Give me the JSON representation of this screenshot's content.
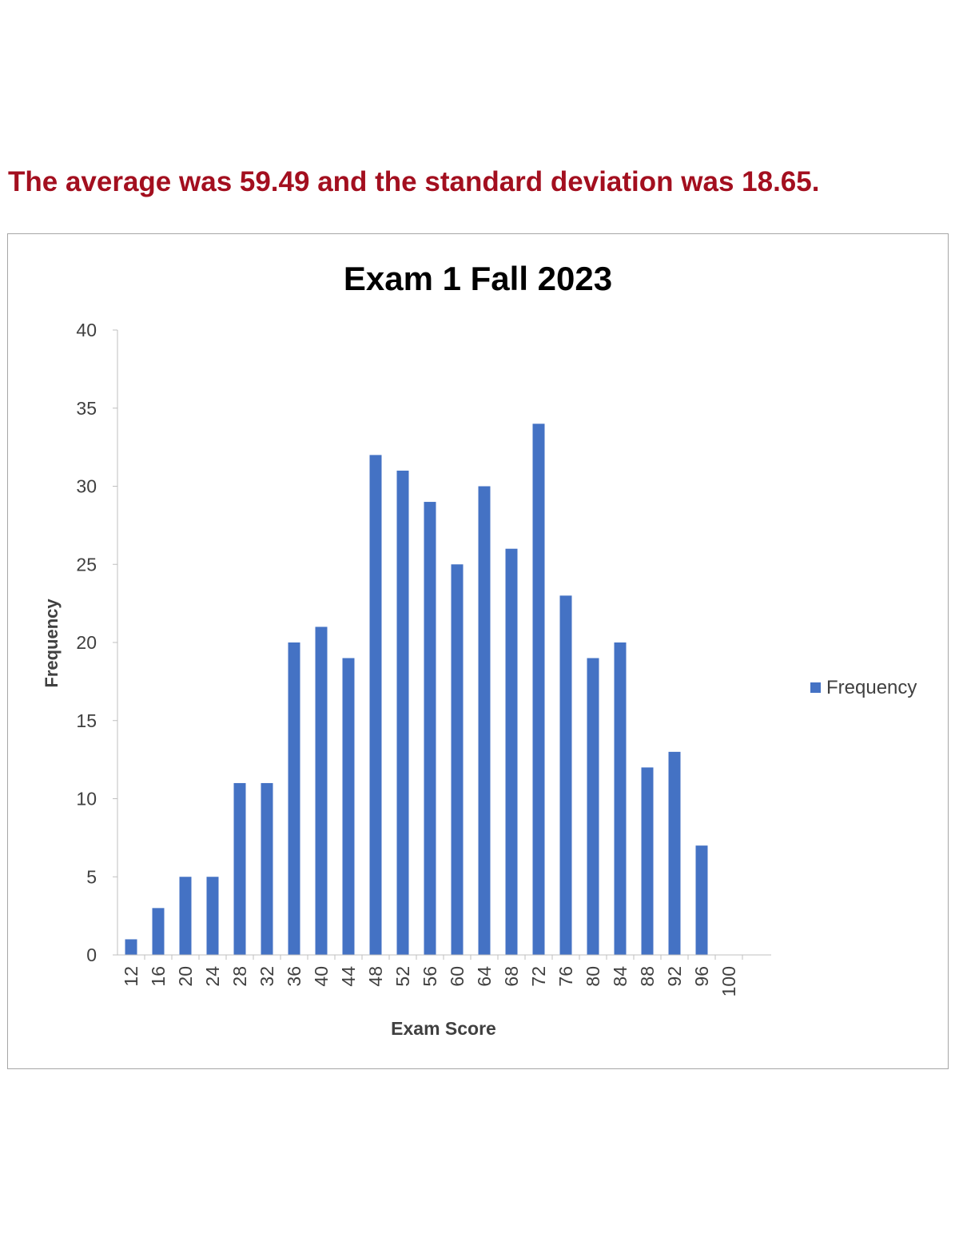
{
  "summary_text": "The average was 59.49 and the standard deviation was 18.65.",
  "colors": {
    "summary": "#a30f1f",
    "bar": "#4472c4",
    "axis": "#bfbfbf",
    "text": "#404040"
  },
  "chart_data": {
    "type": "bar",
    "title": "Exam 1 Fall 2023",
    "xlabel": "Exam Score",
    "ylabel": "Frequency",
    "categories": [
      "12",
      "16",
      "20",
      "24",
      "28",
      "32",
      "36",
      "40",
      "44",
      "48",
      "52",
      "56",
      "60",
      "64",
      "68",
      "72",
      "76",
      "80",
      "84",
      "88",
      "92",
      "96",
      "100"
    ],
    "series": [
      {
        "name": "Frequency",
        "values": [
          1,
          3,
          5,
          5,
          11,
          11,
          20,
          21,
          19,
          32,
          31,
          29,
          25,
          30,
          26,
          34,
          23,
          19,
          20,
          12,
          13,
          7,
          0
        ]
      }
    ],
    "ylim": [
      0,
      40
    ],
    "yticks": [
      0,
      5,
      10,
      15,
      20,
      25,
      30,
      35,
      40
    ],
    "grid": false,
    "legend_position": "right"
  }
}
